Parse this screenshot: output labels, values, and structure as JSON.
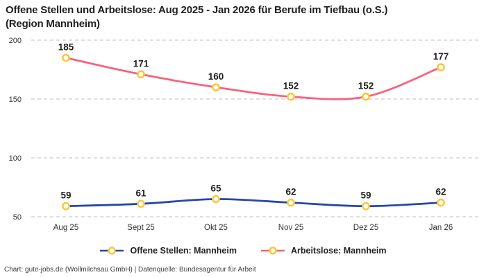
{
  "title": {
    "line1": "Offene Stellen und Arbeitslose: Aug 2025 - Jan 2026 für Berufe im Tiefbau (o.S.)",
    "line2": "(Region Mannheim)"
  },
  "chart_data": {
    "type": "line",
    "title": "Offene Stellen und Arbeitslose: Aug 2025 - Jan 2026 für Berufe im Tiefbau (o.S.) (Region Mannheim)",
    "x": [
      "Aug 25",
      "Sept 25",
      "Okt 25",
      "Nov 25",
      "Dez 25",
      "Jan 26"
    ],
    "series": [
      {
        "name": "Offene Stellen: Mannheim",
        "values": [
          59,
          61,
          65,
          62,
          59,
          62
        ],
        "color": "#2847a8"
      },
      {
        "name": "Arbeitslose: Mannheim",
        "values": [
          185,
          171,
          160,
          152,
          152,
          177
        ],
        "color": "#f8617f"
      }
    ],
    "ylim": [
      50,
      200
    ],
    "yticks": [
      50,
      100,
      150,
      200
    ],
    "grid": "horizontal-dashed",
    "gridline_color": "#cccccc",
    "marker": {
      "fill": "#ffffff",
      "stroke": "#ffc432"
    },
    "data_labels": true,
    "label_color": "#1f1f1f",
    "tick_color": "#333333",
    "legend_position": "bottom-center"
  },
  "legend": {
    "items": [
      {
        "label": "Offene Stellen: Mannheim"
      },
      {
        "label": "Arbeitslose: Mannheim"
      }
    ]
  },
  "footer": {
    "text": "Chart: gute-jobs.de (Wollmilchsau GmbH) | Datenquelle: Bundesagentur für Arbeit"
  }
}
